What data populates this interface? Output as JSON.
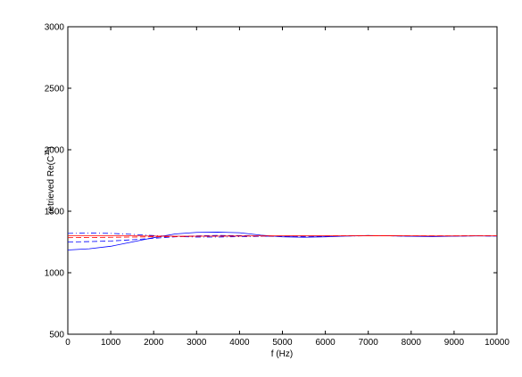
{
  "chart_data": {
    "type": "line",
    "x_label": "f (Hz)",
    "y_label": [
      "retrieved Re(C",
      "11",
      ")"
    ],
    "x": [
      0,
      500,
      1000,
      1500,
      2000,
      2500,
      3000,
      3500,
      4000,
      4500,
      5000,
      5500,
      6000,
      6500,
      7000,
      7500,
      8000,
      8500,
      9000,
      9500,
      10000
    ],
    "series": [
      {
        "color": "#0000ff",
        "dash": "solid",
        "values": [
          1185,
          1195,
          1215,
          1250,
          1285,
          1315,
          1328,
          1330,
          1325,
          1305,
          1292,
          1288,
          1292,
          1298,
          1302,
          1300,
          1296,
          1294,
          1297,
          1299,
          1298
        ]
      },
      {
        "color": "#0000ff",
        "dash": "dashed",
        "values": [
          1250,
          1253,
          1258,
          1268,
          1280,
          1292,
          1300,
          1303,
          1302,
          1298,
          1294,
          1293,
          1296,
          1300,
          1302,
          1300,
          1297,
          1296,
          1298,
          1300,
          1299
        ]
      },
      {
        "color": "#0000ff",
        "dash": "dashdot",
        "values": [
          1320,
          1322,
          1320,
          1312,
          1302,
          1294,
          1290,
          1290,
          1293,
          1296,
          1298,
          1299,
          1299,
          1299,
          1300,
          1300,
          1299,
          1298,
          1299,
          1300,
          1299
        ]
      },
      {
        "color": "#ff0000",
        "dash": "solid",
        "values": [
          1300,
          1300,
          1300,
          1300,
          1298,
          1297,
          1297,
          1298,
          1299,
          1300,
          1300,
          1300,
          1300,
          1300,
          1301,
          1301,
          1300,
          1299,
          1299,
          1300,
          1300
        ]
      },
      {
        "color": "#ff0000",
        "dash": "dashed",
        "values": [
          1285,
          1286,
          1288,
          1290,
          1292,
          1294,
          1296,
          1297,
          1298,
          1298,
          1299,
          1299,
          1299,
          1300,
          1300,
          1300,
          1300,
          1300,
          1300,
          1300,
          1300
        ]
      }
    ],
    "xlim": [
      0,
      10000
    ],
    "xticks": [
      0,
      1000,
      2000,
      3000,
      4000,
      5000,
      6000,
      7000,
      8000,
      9000,
      10000
    ],
    "ylim": [
      500,
      3000
    ],
    "yticks": [
      500,
      1000,
      1500,
      2000,
      2500,
      3000
    ],
    "grid": false
  }
}
